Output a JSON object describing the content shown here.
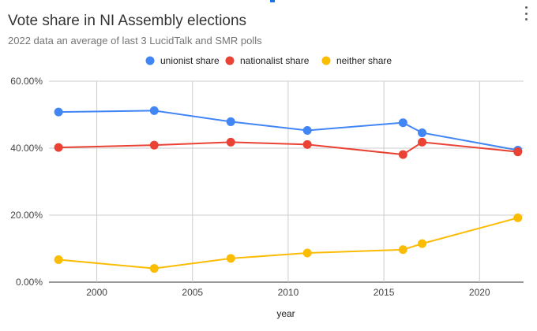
{
  "chart_data": {
    "type": "line",
    "title": "Vote share in NI Assembly elections",
    "subtitle": "2022 data an average of last 3 LucidTalk and SMR polls",
    "xlabel": "year",
    "ylabel": "",
    "xlim": [
      1997.5,
      2022.3
    ],
    "ylim": [
      0,
      60
    ],
    "x_ticks": [
      2000,
      2005,
      2010,
      2015,
      2020
    ],
    "y_ticks": [
      0,
      20,
      40,
      60
    ],
    "y_tick_labels": [
      "0.00%",
      "20.00%",
      "40.00%",
      "60.00%"
    ],
    "legend_position": "top-center",
    "x": [
      1998,
      2003,
      2007,
      2011,
      2016,
      2017,
      2022
    ],
    "series": [
      {
        "name": "unionist share",
        "color": "#4285f4",
        "values": [
          50.8,
          51.2,
          47.9,
          45.3,
          47.6,
          44.6,
          39.4
        ]
      },
      {
        "name": "nationalist share",
        "color": "#ea4335",
        "values": [
          40.2,
          40.9,
          41.8,
          41.1,
          38.1,
          41.8,
          38.9
        ]
      },
      {
        "name": "neither share",
        "color": "#fbbc04",
        "values": [
          6.7,
          4.1,
          7.1,
          8.7,
          9.7,
          11.5,
          19.2
        ]
      }
    ]
  }
}
